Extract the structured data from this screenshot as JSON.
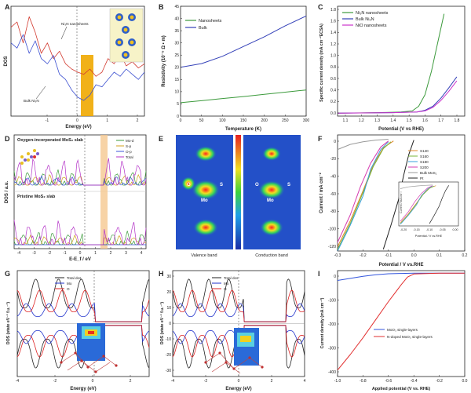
{
  "chart_data": [
    {
      "panel": "A",
      "type": "line",
      "xlabel": "Energy (eV)",
      "ylabel": "DOS",
      "xlim": [
        -2.2,
        2.2
      ],
      "xticks": [
        "-1",
        "0",
        "1",
        "2"
      ],
      "annotations": [
        "Ni₃N nanosheets",
        "Bulk Ni₃N"
      ],
      "series": [
        {
          "name": "Ni₃N nanosheets",
          "color": "#d23a2f",
          "x": [
            -2.2,
            -2.0,
            -1.8,
            -1.6,
            -1.4,
            -1.2,
            -1.0,
            -0.8,
            -0.6,
            -0.4,
            -0.2,
            0.0,
            0.2,
            0.4,
            0.6,
            0.8,
            1.0,
            1.2,
            1.4,
            1.6,
            1.8,
            2.0,
            2.2
          ],
          "values": [
            0.85,
            0.9,
            0.7,
            0.95,
            0.8,
            0.6,
            0.7,
            0.55,
            0.62,
            0.5,
            0.45,
            0.42,
            0.4,
            0.45,
            0.38,
            0.42,
            0.55,
            0.5,
            0.6,
            0.48,
            0.52,
            0.46,
            0.5
          ]
        },
        {
          "name": "Bulk Ni₃N",
          "color": "#3b4fd0",
          "x": [
            -2.2,
            -2.0,
            -1.8,
            -1.6,
            -1.4,
            -1.2,
            -1.0,
            -0.8,
            -0.6,
            -0.4,
            -0.2,
            0.0,
            0.2,
            0.4,
            0.6,
            0.8,
            1.0,
            1.2,
            1.4,
            1.6,
            1.8,
            2.0,
            2.2
          ],
          "values": [
            0.7,
            0.65,
            0.78,
            0.6,
            0.72,
            0.55,
            0.5,
            0.58,
            0.4,
            0.35,
            0.25,
            0.18,
            0.15,
            0.2,
            0.3,
            0.28,
            0.35,
            0.42,
            0.38,
            0.45,
            0.4,
            0.35,
            0.42
          ]
        }
      ]
    },
    {
      "panel": "B",
      "type": "line",
      "xlabel": "Temperature (K)",
      "ylabel": "Resistivity (10⁻⁵ Ω • m)",
      "xlim": [
        0,
        300
      ],
      "ylim": [
        0,
        45
      ],
      "xticks": [
        "0",
        "50",
        "100",
        "150",
        "200",
        "250",
        "300"
      ],
      "yticks": [
        "0",
        "5",
        "10",
        "15",
        "20",
        "25",
        "30",
        "35",
        "40",
        "45"
      ],
      "series": [
        {
          "name": "Nanosheets",
          "color": "#3c9a3c",
          "x": [
            0,
            50,
            100,
            150,
            200,
            250,
            300
          ],
          "values": [
            5.5,
            6.3,
            7.2,
            8.0,
            8.9,
            9.8,
            10.7
          ]
        },
        {
          "name": "Bulk",
          "color": "#3340b8",
          "x": [
            0,
            50,
            100,
            150,
            200,
            250,
            300
          ],
          "values": [
            20.0,
            21.5,
            24.5,
            28.5,
            32.5,
            37.0,
            41.0
          ]
        }
      ]
    },
    {
      "panel": "C",
      "type": "line",
      "xlabel": "Potential (V vs RHE)",
      "ylabel": "Specific current density (mA cm⁻²ECSA)",
      "xlim": [
        1.05,
        1.85
      ],
      "ylim": [
        -0.05,
        1.85
      ],
      "xticks": [
        "1.1",
        "1.2",
        "1.3",
        "1.4",
        "1.5",
        "1.6",
        "1.7",
        "1.8"
      ],
      "yticks": [
        "0.0",
        "0.2",
        "0.4",
        "0.6",
        "0.8",
        "1.0",
        "1.2",
        "1.4",
        "1.6",
        "1.8"
      ],
      "series": [
        {
          "name": "Ni₃N nanosheets",
          "color": "#3c9a3c",
          "x": [
            1.05,
            1.3,
            1.45,
            1.52,
            1.56,
            1.6,
            1.64,
            1.68,
            1.72
          ],
          "values": [
            0.0,
            0.01,
            0.02,
            0.04,
            0.12,
            0.32,
            0.72,
            1.22,
            1.72
          ]
        },
        {
          "name": "Bulk Ni₃N",
          "color": "#3340b8",
          "x": [
            1.05,
            1.4,
            1.55,
            1.6,
            1.65,
            1.7,
            1.75,
            1.8
          ],
          "values": [
            0.0,
            0.01,
            0.02,
            0.05,
            0.12,
            0.26,
            0.44,
            0.63
          ]
        },
        {
          "name": "NiO nanosheets",
          "color": "#cc33cc",
          "x": [
            1.05,
            1.4,
            1.55,
            1.6,
            1.65,
            1.7,
            1.75,
            1.8
          ],
          "values": [
            0.0,
            0.01,
            0.02,
            0.04,
            0.1,
            0.22,
            0.38,
            0.56
          ]
        }
      ]
    },
    {
      "panel": "D",
      "type": "line",
      "xlabel": "E-E_f / eV",
      "ylabel": "DOS / a.u.",
      "xlim": [
        -4.5,
        4.5
      ],
      "xticks": [
        "-4",
        "-3",
        "-2",
        "-1",
        "0",
        "1",
        "2",
        "3",
        "4"
      ],
      "subtitles": [
        "Oxygen-incorporated MoS₂ slab",
        "Pristine MoS₂ slab"
      ],
      "series": [
        {
          "name": "Mo-d",
          "color": "#3c9a3c"
        },
        {
          "name": "S-p",
          "color": "#d1a21e"
        },
        {
          "name": "O-p",
          "color": "#3b55d8"
        },
        {
          "name": "Total",
          "color": "#b433c8"
        }
      ]
    },
    {
      "panel": "E",
      "type": "heatmap",
      "labels": [
        "Valence band",
        "Conduction band"
      ],
      "atom_labels": [
        "O",
        "S",
        "Mo",
        "O",
        "S",
        "Mo"
      ]
    },
    {
      "panel": "F",
      "type": "line",
      "xlabel": "Potential / V vs.RHE",
      "ylabel": "Current / mA cm⁻²",
      "xlim": [
        -0.3,
        0.2
      ],
      "ylim": [
        -130,
        5
      ],
      "xticks": [
        "-0.3",
        "-0.2",
        "-0.1",
        "0.0",
        "0.1",
        "0.2"
      ],
      "yticks": [
        "0",
        "-20",
        "-40",
        "-60",
        "-80",
        "-100",
        "-120"
      ],
      "inset": {
        "xlabel": "Potential / V vs.RHE",
        "ylabel": "Current / mA cm⁻²",
        "xticks": [
          "-0.20",
          "-0.15",
          "-0.10",
          "-0.05",
          "0.00"
        ]
      },
      "series": [
        {
          "name": "S140",
          "color": "#e08a2c",
          "x": [
            -0.3,
            -0.25,
            -0.2,
            -0.16,
            -0.12,
            -0.08
          ],
          "values": [
            -125,
            -95,
            -60,
            -30,
            -10,
            -2
          ]
        },
        {
          "name": "S160",
          "color": "#7ab63a",
          "x": [
            -0.3,
            -0.25,
            -0.2,
            -0.16,
            -0.12,
            -0.09
          ],
          "values": [
            -128,
            -98,
            -62,
            -32,
            -11,
            -3
          ]
        },
        {
          "name": "S180",
          "color": "#3aa0dc",
          "x": [
            -0.3,
            -0.25,
            -0.2,
            -0.17,
            -0.13,
            -0.1
          ],
          "values": [
            -130,
            -100,
            -66,
            -35,
            -12,
            -3
          ]
        },
        {
          "name": "S200",
          "color": "#d63ab0",
          "x": [
            -0.3,
            -0.25,
            -0.21,
            -0.17,
            -0.13,
            -0.1
          ],
          "values": [
            -120,
            -88,
            -55,
            -28,
            -9,
            -2
          ]
        },
        {
          "name": "Bulk MoS₂",
          "color": "#9a9a9a",
          "x": [
            -0.3,
            -0.25,
            -0.2,
            -0.15,
            -0.1
          ],
          "values": [
            -12,
            -6,
            -3,
            -1,
            0
          ]
        },
        {
          "name": "Pt",
          "color": "#222222",
          "x": [
            -0.12,
            -0.09,
            -0.06,
            -0.04,
            -0.02,
            0.0
          ],
          "values": [
            -128,
            -100,
            -70,
            -42,
            -18,
            -1
          ]
        }
      ]
    },
    {
      "panel": "G",
      "type": "line",
      "xlabel": "Energy (eV)",
      "ylabel": "DOS (state eV⁻¹ f.u.⁻¹)",
      "xlim": [
        -4,
        3
      ],
      "xticks": [
        "-4",
        "-2",
        "0",
        "2"
      ],
      "series": [
        {
          "name": "Total dos",
          "color": "#222222"
        },
        {
          "name": "Mo",
          "color": "#2233cc"
        },
        {
          "name": "O",
          "color": "#dd2222"
        }
      ]
    },
    {
      "panel": "H",
      "type": "line",
      "xlabel": "Energy (eV)",
      "ylabel": "DOS (state eV⁻¹ f.u.⁻¹)",
      "xlim": [
        -4,
        4
      ],
      "xticks": [
        "-4",
        "-2",
        "0",
        "2",
        "4"
      ],
      "yticks": [
        "30",
        "20",
        "10",
        "0",
        "-10",
        "-20",
        "-30"
      ],
      "series": [
        {
          "name": "Total dos",
          "color": "#222222"
        },
        {
          "name": "Mo",
          "color": "#2233cc"
        },
        {
          "name": "O",
          "color": "#dd2222"
        }
      ]
    },
    {
      "panel": "I",
      "type": "line",
      "xlabel": "Applied potential (V vs. RHE)",
      "ylabel": "Current density (mA cm⁻²)",
      "xlim": [
        -1.0,
        0.0
      ],
      "ylim": [
        -400,
        10
      ],
      "xticks": [
        "-1.0",
        "-0.8",
        "-0.6",
        "-0.4",
        "-0.2",
        "0.0"
      ],
      "yticks": [
        "0",
        "-100",
        "-200",
        "-300",
        "-400"
      ],
      "series": [
        {
          "name": "MoO₃ single-layers",
          "color": "#3355dd",
          "x": [
            -1.0,
            -0.9,
            -0.8,
            -0.7,
            -0.6,
            -0.5,
            -0.4,
            -0.2,
            0.0
          ],
          "values": [
            -28,
            -20,
            -12,
            -6,
            -2,
            -1,
            0,
            0,
            0
          ]
        },
        {
          "name": "N-doped MoO₃ single-layers",
          "color": "#e23030",
          "x": [
            -1.0,
            -0.9,
            -0.8,
            -0.7,
            -0.6,
            -0.5,
            -0.45,
            -0.4,
            -0.2,
            0.0
          ],
          "values": [
            -375,
            -315,
            -250,
            -180,
            -110,
            -45,
            -15,
            -3,
            0,
            0
          ]
        }
      ]
    }
  ]
}
